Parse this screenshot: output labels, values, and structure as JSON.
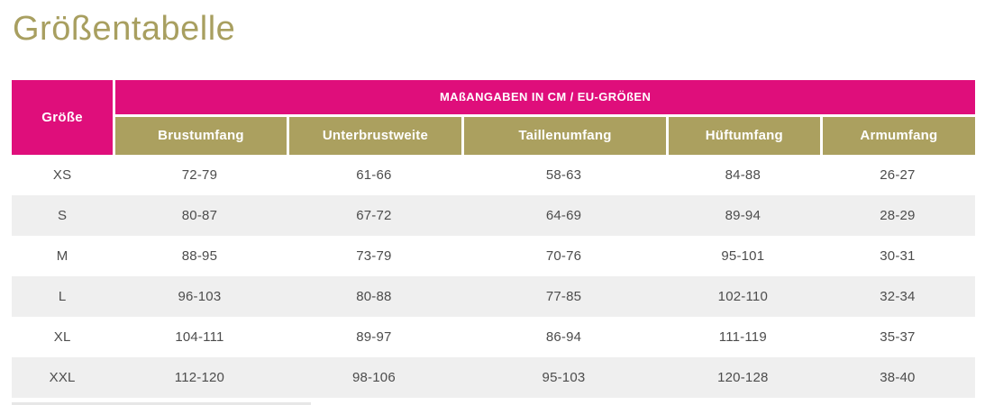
{
  "page": {
    "title": "Größentabelle"
  },
  "colors": {
    "header_pink": "#df0e7b",
    "header_gold": "#aba05f",
    "title_gold": "#a89f60",
    "row_alt_gray": "#efefef",
    "body_text": "#4c4c4c",
    "header_text": "#ffffff"
  },
  "table": {
    "corner_header": "Größe",
    "group_header": "MAßANGABEN IN CM / EU-GRÖßEN",
    "columns": [
      "Brustumfang",
      "Unterbrustweite",
      "Taillenumfang",
      "Hüftumfang",
      "Armumfang"
    ],
    "rows": [
      {
        "size": "XS",
        "values": [
          "72-79",
          "61-66",
          "58-63",
          "84-88",
          "26-27"
        ]
      },
      {
        "size": "S",
        "values": [
          "80-87",
          "67-72",
          "64-69",
          "89-94",
          "28-29"
        ]
      },
      {
        "size": "M",
        "values": [
          "88-95",
          "73-79",
          "70-76",
          "95-101",
          "30-31"
        ]
      },
      {
        "size": "L",
        "values": [
          "96-103",
          "80-88",
          "77-85",
          "102-110",
          "32-34"
        ]
      },
      {
        "size": "XL",
        "values": [
          "104-111",
          "89-97",
          "86-94",
          "111-119",
          "35-37"
        ]
      },
      {
        "size": "XXL",
        "values": [
          "112-120",
          "98-106",
          "95-103",
          "120-128",
          "38-40"
        ]
      }
    ]
  }
}
